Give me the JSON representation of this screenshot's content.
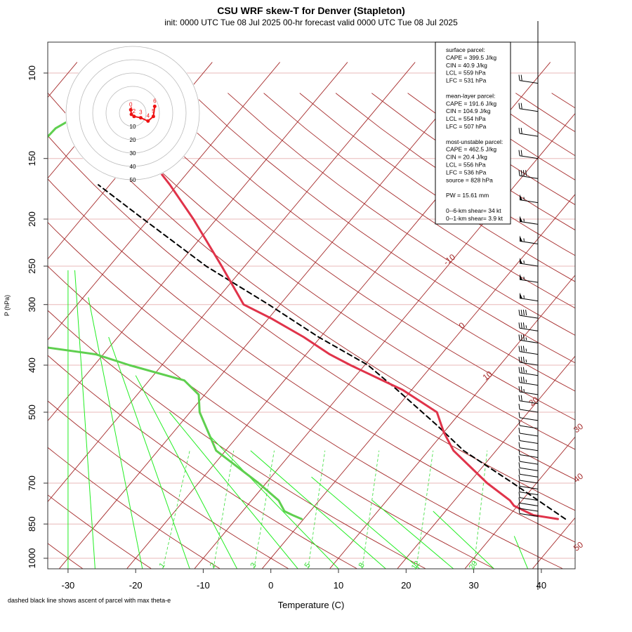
{
  "header": {
    "title": "CSU WRF skew-T for Denver (Stapleton)",
    "subtitle": "init: 0000 UTC Tue 08 Jul 2025    00-hr forecast valid 0000 UTC Tue 08 Jul 2025"
  },
  "footnote": "dashed black line shows ascent of parcel with max theta-e",
  "info": {
    "lines": [
      "surface parcel:",
      "CAPE = 399.5 J/kg",
      "CIN = 40.9 J/kg",
      "LCL = 559 hPa",
      "LFC = 531 hPa",
      "",
      "mean-layer parcel:",
      "CAPE = 191.6 J/kg",
      "CIN = 104.9 J/kg",
      "LCL = 554 hPa",
      "LFC = 507 hPa",
      "",
      "most-unstable parcel:",
      "CAPE = 462.5 J/kg",
      "CIN = 20.4 J/kg",
      "LCL = 556 hPa",
      "LFC = 536 hPa",
      "source = 828 hPa",
      "",
      "PW =  15.61 mm",
      "",
      "0--6-km shear= 34 kt",
      "0--1-km shear= 3.9 kt"
    ]
  },
  "colors": {
    "temperature": "#e0334a",
    "dewpoint": "#5fcf4f",
    "parcel": "#000000",
    "isotherm": "#a52a2a",
    "isobar": "#e8b8b8",
    "mixing_ratio": "#33dd33",
    "moist_adiabat": "#22ee22",
    "hodograph": "#ee1111"
  },
  "chart_data": {
    "type": "skew-t",
    "title": "CSU WRF skew-T for Denver (Stapleton)",
    "xlabel": "Temperature (C)",
    "ylabel": "P (hPa)",
    "xlim": [
      -33,
      45
    ],
    "ylim": [
      1000,
      100
    ],
    "x_ticks": [
      "-30",
      "-20",
      "-10",
      "0",
      "10",
      "20",
      "30",
      "40"
    ],
    "x_tick_values": [
      -30,
      -20,
      -10,
      0,
      10,
      20,
      30,
      40
    ],
    "pressure_ticks": [
      "100",
      "150",
      "200",
      "250",
      "300",
      "400",
      "500",
      "700",
      "850",
      "1000"
    ],
    "pressure_tick_values": [
      100,
      150,
      200,
      250,
      300,
      400,
      500,
      700,
      850,
      1000
    ],
    "isotherm_labels": [
      "-10",
      "0",
      "10",
      "20",
      "30",
      "40",
      "50"
    ],
    "isotherm_label_values": [
      -10,
      0,
      10,
      20,
      30,
      40,
      50
    ],
    "isotherm_label_pressures": [
      245,
      335,
      425,
      480,
      545,
      690,
      955
    ],
    "mixing_ratio_labels": [
      "1",
      "2",
      "3",
      "5",
      "8",
      "12",
      "20"
    ],
    "mixing_ratio_label_values": [
      1,
      2,
      3,
      5,
      8,
      12,
      20
    ],
    "mixing_ratio_bottom_temps": [
      -16,
      -8.5,
      -2.5,
      5.5,
      13.5,
      21.5,
      30
    ],
    "mixing_ratio_top_temps": [
      -12,
      -5.5,
      0.5,
      8,
      16,
      24,
      32
    ],
    "moist_adiabat_bottom_temps": [
      -30,
      -26,
      -19,
      -12,
      -5,
      4,
      10,
      17,
      22,
      27,
      33,
      38
    ],
    "moist_adiabat_top_temps": [
      -30,
      -29,
      -27,
      -24,
      -20,
      -15,
      -9,
      -3,
      6,
      15,
      24,
      36
    ],
    "moist_adiabat_top_pressures": [
      255,
      255,
      290,
      350,
      420,
      500,
      560,
      600,
      680,
      760,
      800,
      900
    ],
    "temperature": {
      "name": "Temperature",
      "pressure": [
        830,
        815,
        780,
        760,
        700,
        600,
        550,
        500,
        450,
        400,
        380,
        350,
        320,
        300,
        250,
        200,
        170,
        150,
        140,
        120,
        110,
        105
      ],
      "temp": [
        37.6,
        33.5,
        29.5,
        28.2,
        22.7,
        13.7,
        10,
        6.5,
        -1.3,
        -12.1,
        -16.5,
        -22.5,
        -29.7,
        -35.4,
        -43.4,
        -53.4,
        -61.1,
        -67.4,
        -71.2,
        -77.0,
        -80.2,
        -81.1
      ]
    },
    "dewpoint": {
      "name": "Dewpoint",
      "pressure": [
        830,
        815,
        800,
        760,
        700,
        600,
        500,
        460,
        430,
        400,
        380,
        350,
        320,
        300,
        280,
        260,
        250,
        230,
        200,
        180,
        170,
        150,
        130,
        115,
        108
      ],
      "dewpoint": [
        -0.3,
        -2.1,
        -3.8,
        -6.0,
        -11.1,
        -21.4,
        -28.6,
        -30.9,
        -34.8,
        -44.8,
        -51.1,
        -71.5,
        -86.5,
        -93.3,
        -96.7,
        -96.6,
        -94.2,
        -89.9,
        -86.1,
        -84.3,
        -84.8,
        -85.5,
        -85.0,
        -81.5,
        -76.2
      ]
    },
    "parcel": {
      "name": "parcel with max theta-e",
      "pressure": [
        830,
        700,
        600,
        530,
        450,
        400,
        350,
        300,
        250,
        200,
        170
      ],
      "temp": [
        38.7,
        26.5,
        15.2,
        7.9,
        -2.1,
        -9.5,
        -20.3,
        -31.7,
        -45.7,
        -60.8,
        -71.7
      ]
    },
    "wind_barb_pressures": [
      105,
      120,
      135,
      150,
      165,
      185,
      205,
      225,
      250,
      270,
      295,
      320,
      340,
      360,
      380,
      400,
      420,
      440,
      460,
      480,
      500,
      520,
      540,
      560,
      580,
      600,
      620,
      640,
      660,
      680,
      700,
      720,
      740,
      760,
      780,
      800,
      820
    ],
    "wind_barb_speeds_kt": [
      20,
      20,
      20,
      20,
      40,
      55,
      55,
      55,
      55,
      55,
      55,
      40,
      35,
      35,
      35,
      35,
      35,
      35,
      25,
      20,
      10,
      10,
      10,
      10,
      10,
      10,
      10,
      10,
      10,
      10,
      10,
      10,
      10,
      10,
      10,
      10,
      10
    ],
    "hodograph": {
      "ring_labels": [
        "10",
        "20",
        "30",
        "40",
        "50"
      ],
      "ring_values_kt": [
        10,
        20,
        30,
        40,
        50
      ],
      "point_labels": [
        "0",
        "1",
        "2",
        "3",
        "4",
        "5",
        "6"
      ],
      "u_kt": [
        -1.5,
        -1.0,
        1.0,
        6.0,
        11.5,
        15.5,
        16.5
      ],
      "v_kt": [
        2.5,
        -1.0,
        -2.5,
        -3.5,
        -6.0,
        -2.5,
        5.0
      ]
    }
  }
}
